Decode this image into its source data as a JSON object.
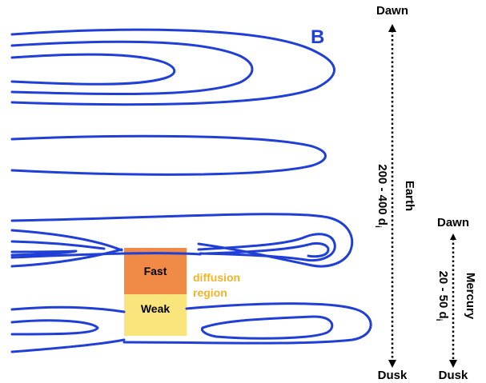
{
  "field_label": "B",
  "regions": {
    "fast": "Fast",
    "weak": "Weak",
    "diffusion_line1": "diffusion",
    "diffusion_line2": "region"
  },
  "earth_axis": {
    "top_label": "Dawn",
    "bottom_label": "Dusk",
    "name": "Earth",
    "range": "200 - 400 d",
    "subscript": "i"
  },
  "mercury_axis": {
    "top_label": "Dawn",
    "bottom_label": "Dusk",
    "name": "Mercury",
    "range": "20 - 50 d",
    "subscript": "i"
  },
  "colors": {
    "field_lines": "#1f3fd6",
    "fast_region": "#f08a46",
    "weak_region": "#f9e57c",
    "diffusion_text": "#f0b429",
    "text": "#000000"
  }
}
